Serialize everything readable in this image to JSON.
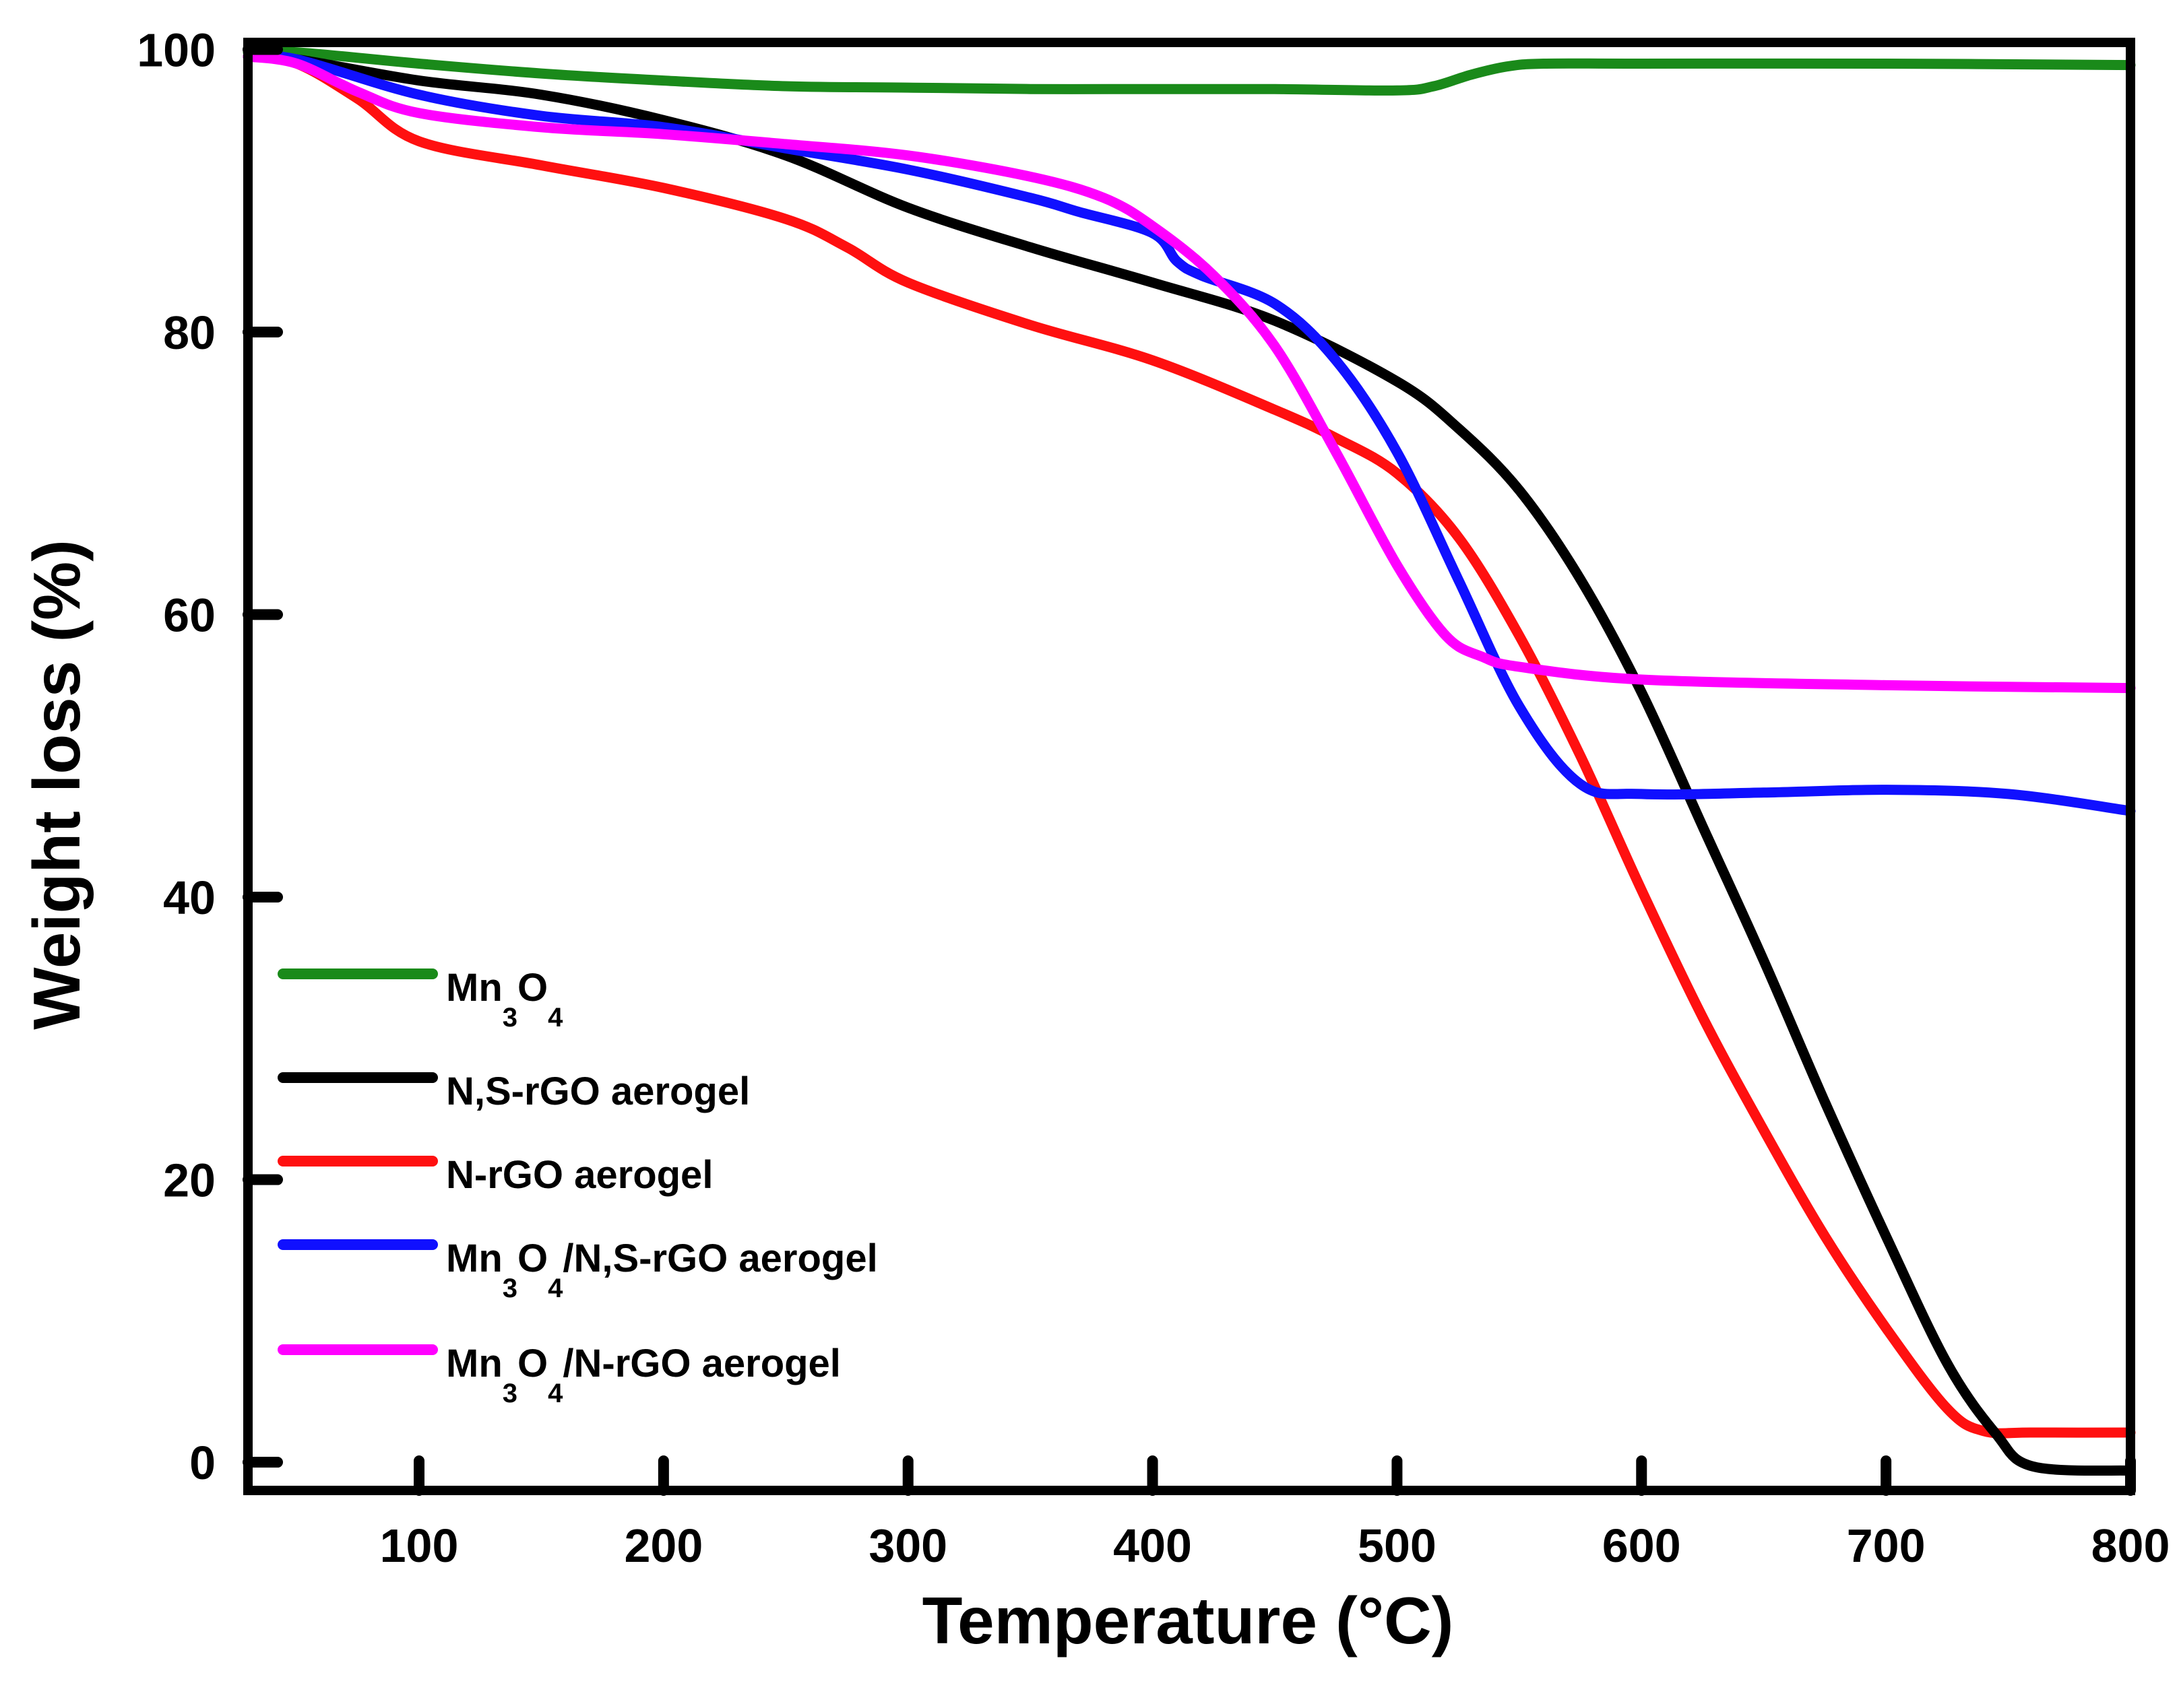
{
  "chart_data": {
    "type": "line",
    "title": "",
    "xlabel": "Temperature (°C)",
    "ylabel": "Weight loss (%)",
    "xlim": [
      30,
      800
    ],
    "ylim": [
      -2,
      100.5
    ],
    "x_ticks": [
      100,
      200,
      300,
      400,
      500,
      600,
      700,
      800
    ],
    "y_ticks": [
      0,
      20,
      40,
      60,
      80,
      100
    ],
    "legend_position": "left",
    "series": [
      {
        "name": "Mn3O4",
        "legend_parts": [
          [
            "Mn",
            "n"
          ],
          [
            "3",
            "s"
          ],
          [
            "O",
            "n"
          ],
          [
            "4",
            "s"
          ]
        ],
        "color": "#1a8a1a",
        "x": [
          30,
          50,
          100,
          150,
          200,
          250,
          300,
          350,
          400,
          450,
          500,
          515,
          530,
          545,
          560,
          600,
          700,
          800
        ],
        "y": [
          99.8,
          99.8,
          99.0,
          98.3,
          97.8,
          97.4,
          97.3,
          97.2,
          97.2,
          97.2,
          97.1,
          97.4,
          98.2,
          98.8,
          99.0,
          99.0,
          99.0,
          98.9
        ]
      },
      {
        "name": "N,S-rGO aerogel",
        "legend_parts": [
          [
            "N,S-rGO aerogel",
            "n"
          ]
        ],
        "color": "#000000",
        "x": [
          30,
          50,
          100,
          150,
          200,
          250,
          300,
          350,
          400,
          450,
          500,
          525,
          550,
          575,
          600,
          625,
          650,
          675,
          700,
          725,
          745,
          760,
          800
        ],
        "y": [
          99.5,
          99.3,
          97.8,
          96.8,
          95.0,
          92.5,
          88.8,
          86.0,
          83.5,
          80.8,
          76.5,
          73.2,
          68.8,
          62.5,
          54.5,
          45.0,
          35.5,
          25.5,
          16.0,
          7.0,
          2.0,
          -0.3,
          -0.6
        ]
      },
      {
        "name": "N-rGO aerogel",
        "legend_parts": [
          [
            "N-rGO aerogel",
            "n"
          ]
        ],
        "color": "#ff1010",
        "x": [
          30,
          50,
          75,
          100,
          150,
          200,
          250,
          275,
          300,
          350,
          400,
          450,
          475,
          500,
          525,
          550,
          575,
          600,
          625,
          650,
          675,
          700,
          725,
          740,
          760,
          800
        ],
        "y": [
          99.5,
          99.0,
          96.5,
          93.5,
          91.8,
          90.2,
          88.0,
          86.0,
          83.5,
          80.5,
          78.0,
          74.5,
          72.5,
          70.0,
          65.5,
          58.5,
          50.0,
          40.5,
          31.5,
          23.5,
          16.0,
          9.5,
          3.8,
          2.2,
          2.1,
          2.1
        ]
      },
      {
        "name": "Mn3O4/N,S-rGO aerogel",
        "legend_parts": [
          [
            "Mn",
            "n"
          ],
          [
            "3",
            "s"
          ],
          [
            "O",
            "n"
          ],
          [
            "4",
            "s"
          ],
          [
            "/N,S-rGO aerogel",
            "n"
          ]
        ],
        "color": "#1010ff",
        "x": [
          30,
          50,
          100,
          150,
          200,
          250,
          300,
          350,
          370,
          400,
          410,
          420,
          450,
          475,
          500,
          525,
          550,
          575,
          600,
          650,
          700,
          750,
          800
        ],
        "y": [
          99.5,
          99.3,
          96.8,
          95.3,
          94.5,
          93.0,
          91.5,
          89.5,
          88.5,
          87.0,
          85.0,
          84.0,
          82.0,
          78.0,
          71.5,
          62.5,
          53.5,
          48.0,
          47.3,
          47.4,
          47.6,
          47.3,
          46.1
        ]
      },
      {
        "name": "Mn3O4/N-rGO aerogel",
        "legend_parts": [
          [
            "Mn",
            "n"
          ],
          [
            "3",
            "s"
          ],
          [
            "O",
            "n"
          ],
          [
            "4",
            "s"
          ],
          [
            "/N-rGO aerogel",
            "n"
          ]
        ],
        "color": "#ff00ff",
        "x": [
          30,
          50,
          75,
          100,
          150,
          200,
          250,
          300,
          350,
          380,
          400,
          425,
          450,
          475,
          500,
          520,
          535,
          550,
          600,
          700,
          800
        ],
        "y": [
          99.5,
          99.0,
          97.0,
          95.5,
          94.5,
          94.0,
          93.3,
          92.5,
          91.0,
          89.5,
          87.5,
          84.0,
          79.0,
          71.5,
          63.5,
          58.5,
          57.0,
          56.3,
          55.4,
          55.0,
          54.8
        ]
      }
    ]
  }
}
